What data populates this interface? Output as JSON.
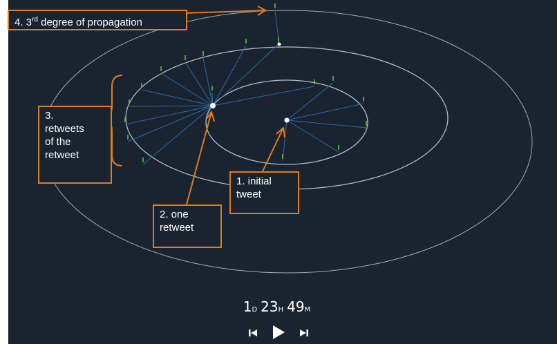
{
  "labels": {
    "degree3": {
      "prefix": "4. 3",
      "sup": "rd",
      "suffix": " degree of propagation"
    },
    "retweets_of_retweet": [
      "3.",
      "retweets",
      "of the",
      "retweet"
    ],
    "initial_tweet": [
      "1. initial",
      "tweet"
    ],
    "one_retweet": [
      "2. one",
      "retweet"
    ]
  },
  "timer": {
    "days": "1",
    "days_unit": "D",
    "hours": "23",
    "hours_unit": "H",
    "minutes": "49",
    "minutes_unit": "M"
  },
  "controls": {
    "prev_icon": "skip-back-icon",
    "play_icon": "play-icon",
    "next_icon": "skip-forward-icon"
  },
  "colors": {
    "background": "#1a2431",
    "accent": "#e07b1f",
    "edge": "#2e6aa6",
    "leaf": "#5fbf3a",
    "ring": "#c7ccd2",
    "node": "#ffffff"
  }
}
